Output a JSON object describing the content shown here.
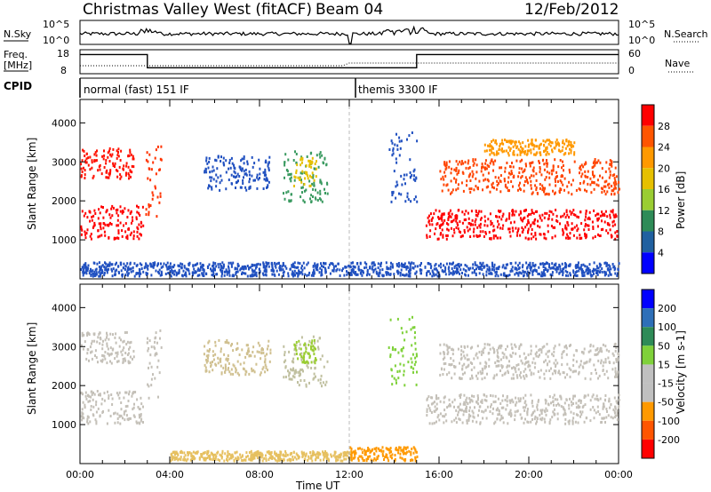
{
  "header": {
    "title": "Christmas Valley West (fitACF)",
    "beam": "Beam 04",
    "date": "12/Feb/2012"
  },
  "top_panels": {
    "nsky_label": "N.Sky",
    "nsearch_label": "N.Search",
    "nsky_ticks": [
      "10^5",
      "10^0"
    ],
    "nsky_right_ticks": [
      "10^5",
      "10^0"
    ],
    "freq_label_1": "Freq.",
    "freq_label_2": "[MHz]",
    "freq_ticks": [
      "18",
      "8"
    ],
    "nave_label": "Nave",
    "nave_ticks": [
      "60",
      "0"
    ],
    "cpid_label": "CPID",
    "cpid_segments": [
      {
        "label": "normal (fast) 151 IF",
        "start_hour": 0,
        "end_hour": 12
      },
      {
        "label": "themis 3300 IF",
        "start_hour": 12,
        "end_hour": 24
      }
    ],
    "freq_steps": [
      {
        "start_hour": 0,
        "end_hour": 3.0,
        "freq_mhz": 16
      },
      {
        "start_hour": 3.0,
        "end_hour": 12,
        "freq_mhz": 10.5
      },
      {
        "start_hour": 12.1,
        "end_hour": 15.0,
        "freq_mhz": 10.5
      },
      {
        "start_hour": 15.0,
        "end_hour": 24,
        "freq_mhz": 16
      }
    ]
  },
  "chart_data": [
    {
      "type": "heatmap",
      "name": "power",
      "ylabel": "Slant Range [km]",
      "xlabel": "Time UT",
      "xlim_hours": [
        0,
        24
      ],
      "ylim": [
        0,
        4600
      ],
      "x_ticks": [
        "00:00",
        "04:00",
        "08:00",
        "12:00",
        "16:00",
        "20:00",
        "00:00"
      ],
      "y_ticks": [
        1000,
        2000,
        3000,
        4000
      ],
      "colorbar_label": "Power [dB]",
      "colorbar_ticks": [
        "28",
        "24",
        "20",
        "16",
        "12",
        "8",
        "4"
      ],
      "colorbar_colors": [
        "#ff0000",
        "#ff5500",
        "#ff9900",
        "#e6c000",
        "#9acd32",
        "#2e8b57",
        "#2060a0",
        "#0000ff"
      ],
      "features": [
        {
          "t0": 0.0,
          "t1": 2.8,
          "r0": 1050,
          "r1": 1900,
          "color": "#ff0000"
        },
        {
          "t0": 0.0,
          "t1": 2.4,
          "r0": 2600,
          "r1": 3400,
          "color": "#ff1100"
        },
        {
          "t0": 2.9,
          "t1": 3.6,
          "r0": 1600,
          "r1": 3500,
          "color": "#ff3300"
        },
        {
          "t0": 5.5,
          "t1": 8.5,
          "r0": 2300,
          "r1": 3200,
          "color": "#2050c0"
        },
        {
          "t0": 9.0,
          "t1": 11.0,
          "r0": 2000,
          "r1": 3300,
          "color": "#3a9a60"
        },
        {
          "t0": 9.5,
          "t1": 10.5,
          "r0": 2400,
          "r1": 3200,
          "color": "#e6c000"
        },
        {
          "t0": 13.7,
          "t1": 15.0,
          "r0": 2000,
          "r1": 3800,
          "color": "#2050c0"
        },
        {
          "t0": 15.4,
          "t1": 24.0,
          "r0": 1050,
          "r1": 1800,
          "color": "#ff0000"
        },
        {
          "t0": 16.0,
          "t1": 24.0,
          "r0": 2200,
          "r1": 3100,
          "color": "#ff4400"
        },
        {
          "t0": 18.0,
          "t1": 22.0,
          "r0": 3200,
          "r1": 3600,
          "color": "#ff9900"
        },
        {
          "t0": 0.0,
          "t1": 24.0,
          "r0": 100,
          "r1": 450,
          "color": "#2050c0"
        }
      ]
    },
    {
      "type": "heatmap",
      "name": "velocity",
      "ylabel": "Slant Range [km]",
      "xlabel": "Time UT",
      "xlim_hours": [
        0,
        24
      ],
      "ylim": [
        0,
        4600
      ],
      "x_ticks": [
        "00:00",
        "04:00",
        "08:00",
        "12:00",
        "16:00",
        "20:00",
        "00:00"
      ],
      "y_ticks": [
        1000,
        2000,
        3000,
        4000
      ],
      "colorbar_label": "Velocity [m s-1]",
      "colorbar_ticks": [
        "200",
        "100",
        "50",
        "15",
        "-15",
        "-50",
        "-100",
        "-200"
      ],
      "colorbar_colors": [
        "#0000ff",
        "#2e6fb8",
        "#2e8b57",
        "#7fd13a",
        "#c0c0c0",
        "#c0c0c0",
        "#ff9900",
        "#ff5500",
        "#ff0000"
      ],
      "features": [
        {
          "t0": 0.0,
          "t1": 2.8,
          "r0": 1050,
          "r1": 1900,
          "color": "#c4c0b8"
        },
        {
          "t0": 0.0,
          "t1": 2.4,
          "r0": 2600,
          "r1": 3400,
          "color": "#c4c0b8"
        },
        {
          "t0": 2.9,
          "t1": 3.6,
          "r0": 1600,
          "r1": 3500,
          "color": "#c4c0b8"
        },
        {
          "t0": 5.5,
          "t1": 8.5,
          "r0": 2300,
          "r1": 3200,
          "color": "#d0c090"
        },
        {
          "t0": 9.0,
          "t1": 11.0,
          "r0": 2000,
          "r1": 3300,
          "color": "#c0c0a0"
        },
        {
          "t0": 9.5,
          "t1": 10.5,
          "r0": 2600,
          "r1": 3200,
          "color": "#9acd32"
        },
        {
          "t0": 13.7,
          "t1": 15.0,
          "r0": 2000,
          "r1": 3800,
          "color": "#7fd13a"
        },
        {
          "t0": 15.4,
          "t1": 24.0,
          "r0": 1050,
          "r1": 1800,
          "color": "#c4c0b8"
        },
        {
          "t0": 16.0,
          "t1": 24.0,
          "r0": 2200,
          "r1": 3100,
          "color": "#c4c0b8"
        },
        {
          "t0": 12.0,
          "t1": 15.0,
          "r0": 100,
          "r1": 450,
          "color": "#ff9900"
        },
        {
          "t0": 4.0,
          "t1": 12.0,
          "r0": 100,
          "r1": 350,
          "color": "#e6c060"
        }
      ]
    }
  ]
}
